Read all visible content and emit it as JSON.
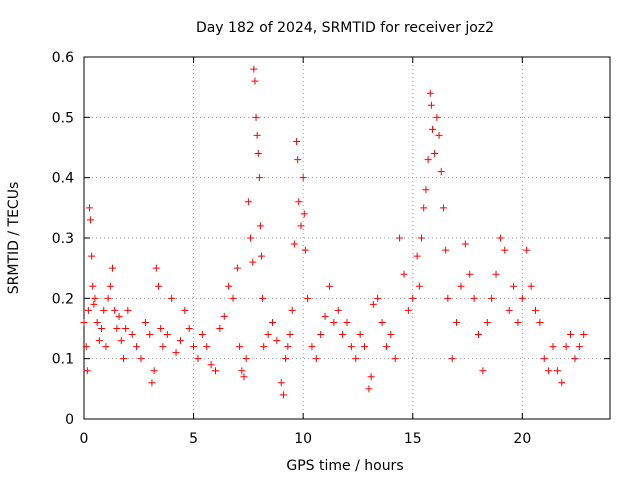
{
  "chart_data": {
    "type": "scatter",
    "title": "Day 182 of 2024, SRMTID for receiver joz2",
    "xlabel": "GPS time / hours",
    "ylabel": "SRMTID / TECUs",
    "xlim": [
      0,
      24
    ],
    "ylim": [
      0,
      0.6
    ],
    "xticks": [
      0,
      5,
      10,
      15,
      20
    ],
    "yticks": [
      0,
      0.1,
      0.2,
      0.3,
      0.4,
      0.5,
      0.6
    ],
    "grid": true,
    "marker": "+",
    "marker_color": "#ff0000",
    "series": [
      {
        "name": "SRMTID",
        "points": [
          [
            0.0,
            0.16
          ],
          [
            0.1,
            0.12
          ],
          [
            0.15,
            0.08
          ],
          [
            0.2,
            0.18
          ],
          [
            0.25,
            0.35
          ],
          [
            0.3,
            0.33
          ],
          [
            0.35,
            0.27
          ],
          [
            0.4,
            0.22
          ],
          [
            0.45,
            0.19
          ],
          [
            0.5,
            0.2
          ],
          [
            0.6,
            0.16
          ],
          [
            0.7,
            0.13
          ],
          [
            0.8,
            0.15
          ],
          [
            0.9,
            0.18
          ],
          [
            1.0,
            0.12
          ],
          [
            1.1,
            0.2
          ],
          [
            1.2,
            0.22
          ],
          [
            1.3,
            0.25
          ],
          [
            1.4,
            0.18
          ],
          [
            1.5,
            0.15
          ],
          [
            1.6,
            0.17
          ],
          [
            1.7,
            0.13
          ],
          [
            1.8,
            0.1
          ],
          [
            1.9,
            0.15
          ],
          [
            2.0,
            0.18
          ],
          [
            2.2,
            0.14
          ],
          [
            2.4,
            0.12
          ],
          [
            2.6,
            0.1
          ],
          [
            2.8,
            0.16
          ],
          [
            3.0,
            0.14
          ],
          [
            3.1,
            0.06
          ],
          [
            3.2,
            0.08
          ],
          [
            3.3,
            0.25
          ],
          [
            3.4,
            0.22
          ],
          [
            3.5,
            0.15
          ],
          [
            3.6,
            0.12
          ],
          [
            3.8,
            0.14
          ],
          [
            4.0,
            0.2
          ],
          [
            4.2,
            0.11
          ],
          [
            4.4,
            0.13
          ],
          [
            4.6,
            0.18
          ],
          [
            4.8,
            0.15
          ],
          [
            5.0,
            0.12
          ],
          [
            5.2,
            0.1
          ],
          [
            5.4,
            0.14
          ],
          [
            5.6,
            0.12
          ],
          [
            5.8,
            0.09
          ],
          [
            6.0,
            0.08
          ],
          [
            6.2,
            0.15
          ],
          [
            6.4,
            0.17
          ],
          [
            6.6,
            0.22
          ],
          [
            6.8,
            0.2
          ],
          [
            7.0,
            0.25
          ],
          [
            7.1,
            0.12
          ],
          [
            7.2,
            0.08
          ],
          [
            7.3,
            0.07
          ],
          [
            7.4,
            0.1
          ],
          [
            7.5,
            0.36
          ],
          [
            7.6,
            0.3
          ],
          [
            7.7,
            0.26
          ],
          [
            7.75,
            0.58
          ],
          [
            7.8,
            0.56
          ],
          [
            7.85,
            0.5
          ],
          [
            7.9,
            0.47
          ],
          [
            7.95,
            0.44
          ],
          [
            8.0,
            0.4
          ],
          [
            8.05,
            0.32
          ],
          [
            8.1,
            0.27
          ],
          [
            8.15,
            0.2
          ],
          [
            8.2,
            0.12
          ],
          [
            8.4,
            0.14
          ],
          [
            8.6,
            0.16
          ],
          [
            8.8,
            0.13
          ],
          [
            9.0,
            0.06
          ],
          [
            9.1,
            0.04
          ],
          [
            9.2,
            0.1
          ],
          [
            9.3,
            0.12
          ],
          [
            9.4,
            0.14
          ],
          [
            9.5,
            0.18
          ],
          [
            9.6,
            0.29
          ],
          [
            9.7,
            0.46
          ],
          [
            9.75,
            0.43
          ],
          [
            9.8,
            0.36
          ],
          [
            9.9,
            0.32
          ],
          [
            10.0,
            0.4
          ],
          [
            10.05,
            0.34
          ],
          [
            10.1,
            0.28
          ],
          [
            10.2,
            0.2
          ],
          [
            10.4,
            0.12
          ],
          [
            10.6,
            0.1
          ],
          [
            10.8,
            0.14
          ],
          [
            11.0,
            0.17
          ],
          [
            11.2,
            0.22
          ],
          [
            11.4,
            0.16
          ],
          [
            11.6,
            0.18
          ],
          [
            11.8,
            0.14
          ],
          [
            12.0,
            0.16
          ],
          [
            12.2,
            0.12
          ],
          [
            12.4,
            0.1
          ],
          [
            12.6,
            0.14
          ],
          [
            12.8,
            0.12
          ],
          [
            13.0,
            0.05
          ],
          [
            13.1,
            0.07
          ],
          [
            13.2,
            0.19
          ],
          [
            13.4,
            0.2
          ],
          [
            13.6,
            0.16
          ],
          [
            13.8,
            0.12
          ],
          [
            14.0,
            0.14
          ],
          [
            14.2,
            0.1
          ],
          [
            14.4,
            0.3
          ],
          [
            14.6,
            0.24
          ],
          [
            14.8,
            0.18
          ],
          [
            15.0,
            0.2
          ],
          [
            15.2,
            0.27
          ],
          [
            15.3,
            0.22
          ],
          [
            15.4,
            0.3
          ],
          [
            15.5,
            0.35
          ],
          [
            15.6,
            0.38
          ],
          [
            15.7,
            0.43
          ],
          [
            15.8,
            0.54
          ],
          [
            15.85,
            0.52
          ],
          [
            15.9,
            0.48
          ],
          [
            16.0,
            0.44
          ],
          [
            16.1,
            0.5
          ],
          [
            16.2,
            0.47
          ],
          [
            16.3,
            0.41
          ],
          [
            16.4,
            0.35
          ],
          [
            16.5,
            0.28
          ],
          [
            16.6,
            0.2
          ],
          [
            16.8,
            0.1
          ],
          [
            17.0,
            0.16
          ],
          [
            17.2,
            0.22
          ],
          [
            17.4,
            0.29
          ],
          [
            17.6,
            0.24
          ],
          [
            17.8,
            0.2
          ],
          [
            18.0,
            0.14
          ],
          [
            18.2,
            0.08
          ],
          [
            18.4,
            0.16
          ],
          [
            18.6,
            0.2
          ],
          [
            18.8,
            0.24
          ],
          [
            19.0,
            0.3
          ],
          [
            19.2,
            0.28
          ],
          [
            19.4,
            0.18
          ],
          [
            19.6,
            0.22
          ],
          [
            19.8,
            0.16
          ],
          [
            20.0,
            0.2
          ],
          [
            20.2,
            0.28
          ],
          [
            20.4,
            0.22
          ],
          [
            20.6,
            0.18
          ],
          [
            20.8,
            0.16
          ],
          [
            21.0,
            0.1
          ],
          [
            21.2,
            0.08
          ],
          [
            21.4,
            0.12
          ],
          [
            21.6,
            0.08
          ],
          [
            21.8,
            0.06
          ],
          [
            22.0,
            0.12
          ],
          [
            22.2,
            0.14
          ],
          [
            22.4,
            0.1
          ],
          [
            22.6,
            0.12
          ],
          [
            22.8,
            0.14
          ]
        ]
      }
    ]
  }
}
